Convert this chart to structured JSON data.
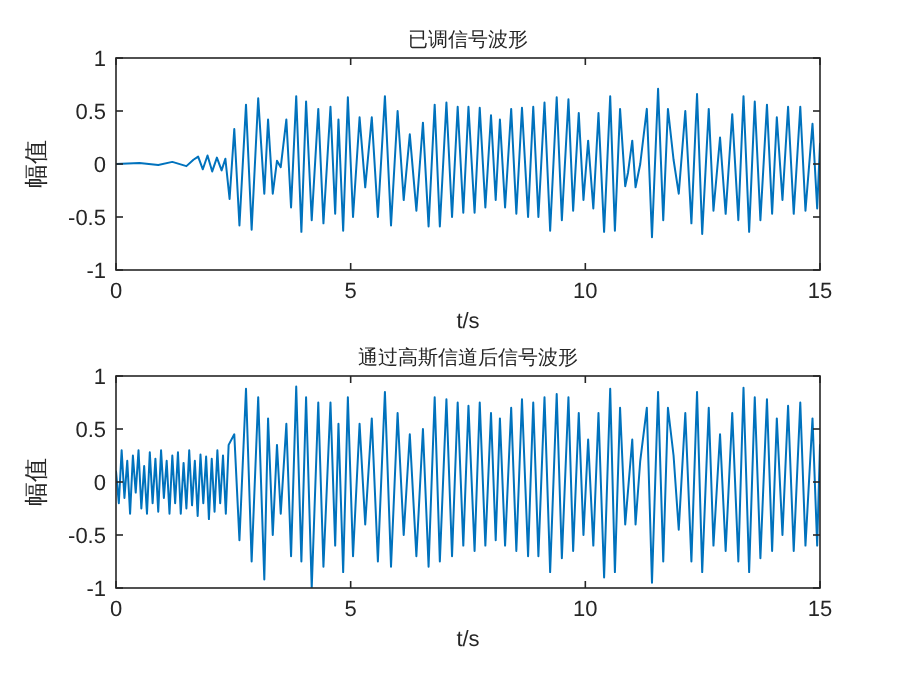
{
  "chart_data": [
    {
      "type": "line",
      "title": "已调信号波形",
      "xlabel": "t/s",
      "ylabel": "幅值",
      "color": "#0072bd",
      "xlim": [
        0,
        15
      ],
      "ylim": [
        -1,
        1
      ],
      "xticks": [
        0,
        5,
        10,
        15
      ],
      "yticks": [
        -1,
        -0.5,
        0,
        0.5,
        1
      ],
      "x": [
        0,
        0.5,
        0.9,
        1.2,
        1.5,
        1.65,
        1.75,
        1.85,
        1.95,
        2.05,
        2.15,
        2.25,
        2.33,
        2.42,
        2.52,
        2.63,
        2.77,
        2.89,
        3.03,
        3.16,
        3.24,
        3.34,
        3.43,
        3.51,
        3.63,
        3.73,
        3.84,
        3.95,
        4.05,
        4.17,
        4.31,
        4.42,
        4.57,
        4.67,
        4.74,
        4.84,
        4.94,
        5.05,
        5.19,
        5.31,
        5.45,
        5.58,
        5.73,
        5.86,
        6.0,
        6.13,
        6.26,
        6.4,
        6.54,
        6.66,
        6.79,
        6.9,
        7.04,
        7.16,
        7.28,
        7.4,
        7.51,
        7.64,
        7.75,
        7.87,
        7.99,
        8.09,
        8.18,
        8.29,
        8.42,
        8.53,
        8.65,
        8.78,
        8.89,
        9.0,
        9.13,
        9.25,
        9.39,
        9.5,
        9.64,
        9.74,
        9.86,
        9.96,
        10.06,
        10.17,
        10.28,
        10.4,
        10.53,
        10.63,
        10.74,
        10.85,
        10.91,
        11.0,
        11.07,
        11.17,
        11.31,
        11.42,
        11.55,
        11.66,
        11.76,
        11.88,
        11.99,
        12.13,
        12.26,
        12.38,
        12.49,
        12.63,
        12.73,
        12.87,
        12.99,
        13.13,
        13.26,
        13.37,
        13.49,
        13.61,
        13.73,
        13.87,
        13.98,
        14.08,
        14.2,
        14.32,
        14.44,
        14.58,
        14.69,
        14.84,
        14.94,
        15.0
      ],
      "values": [
        0,
        0.01,
        -0.01,
        0.02,
        -0.02,
        0.04,
        0.07,
        -0.05,
        0.08,
        -0.07,
        0.06,
        -0.06,
        0.05,
        -0.33,
        0.33,
        -0.58,
        0.56,
        -0.62,
        0.62,
        -0.28,
        0.42,
        -0.28,
        0.03,
        -0.03,
        0.42,
        -0.41,
        0.64,
        -0.64,
        0.59,
        -0.53,
        0.52,
        -0.56,
        0.54,
        -0.47,
        0.42,
        -0.63,
        0.63,
        -0.5,
        0.44,
        -0.22,
        0.44,
        -0.5,
        0.64,
        -0.58,
        0.5,
        -0.34,
        0.28,
        -0.44,
        0.39,
        -0.59,
        0.56,
        -0.59,
        0.58,
        -0.5,
        0.54,
        -0.46,
        0.54,
        -0.46,
        0.53,
        -0.41,
        0.46,
        -0.34,
        0.42,
        -0.41,
        0.52,
        -0.47,
        0.53,
        -0.5,
        0.54,
        -0.5,
        0.58,
        -0.63,
        0.63,
        -0.53,
        0.61,
        -0.44,
        0.48,
        -0.34,
        0.22,
        -0.42,
        0.48,
        -0.64,
        0.64,
        -0.63,
        0.52,
        -0.21,
        -0.08,
        0.22,
        -0.22,
        0,
        0.52,
        -0.69,
        0.71,
        -0.53,
        0.52,
        0.04,
        -0.28,
        0.5,
        -0.56,
        0.66,
        -0.66,
        0.52,
        -0.44,
        0.25,
        -0.47,
        0.47,
        -0.53,
        0.64,
        -0.64,
        0.59,
        -0.53,
        0.56,
        -0.47,
        0.44,
        -0.34,
        0.54,
        -0.47,
        0.54,
        -0.44,
        0.38,
        -0.42,
        0.19
      ]
    },
    {
      "type": "line",
      "title": "通过高斯信道后信号波形",
      "xlabel": "t/s",
      "ylabel": "幅值",
      "color": "#0072bd",
      "xlim": [
        0,
        15
      ],
      "ylim": [
        -1,
        1
      ],
      "xticks": [
        0,
        5,
        10,
        15
      ],
      "yticks": [
        -1,
        -0.5,
        0,
        0.5,
        1
      ],
      "x": [
        0,
        0.06,
        0.12,
        0.18,
        0.24,
        0.3,
        0.36,
        0.42,
        0.48,
        0.54,
        0.6,
        0.66,
        0.72,
        0.78,
        0.84,
        0.9,
        0.96,
        1.02,
        1.08,
        1.14,
        1.2,
        1.26,
        1.32,
        1.38,
        1.44,
        1.5,
        1.56,
        1.62,
        1.68,
        1.74,
        1.8,
        1.86,
        1.92,
        1.98,
        2.04,
        2.1,
        2.16,
        2.22,
        2.28,
        2.34,
        2.4,
        2.52,
        2.63,
        2.77,
        2.89,
        3.03,
        3.16,
        3.24,
        3.34,
        3.43,
        3.51,
        3.63,
        3.73,
        3.84,
        3.95,
        4.05,
        4.17,
        4.31,
        4.42,
        4.57,
        4.67,
        4.74,
        4.84,
        4.94,
        5.05,
        5.19,
        5.31,
        5.45,
        5.58,
        5.73,
        5.86,
        6.0,
        6.13,
        6.26,
        6.4,
        6.54,
        6.66,
        6.79,
        6.9,
        7.04,
        7.16,
        7.28,
        7.4,
        7.51,
        7.64,
        7.75,
        7.87,
        7.99,
        8.09,
        8.18,
        8.29,
        8.42,
        8.53,
        8.65,
        8.78,
        8.89,
        9.0,
        9.13,
        9.25,
        9.39,
        9.5,
        9.64,
        9.74,
        9.86,
        9.96,
        10.06,
        10.17,
        10.28,
        10.4,
        10.53,
        10.63,
        10.74,
        10.85,
        11.0,
        11.07,
        11.17,
        11.31,
        11.42,
        11.55,
        11.66,
        11.76,
        11.88,
        11.99,
        12.13,
        12.26,
        12.38,
        12.49,
        12.63,
        12.73,
        12.87,
        12.99,
        13.13,
        13.26,
        13.37,
        13.49,
        13.61,
        13.73,
        13.87,
        13.98,
        14.08,
        14.2,
        14.32,
        14.44,
        14.58,
        14.69,
        14.84,
        14.94,
        15.0
      ],
      "values": [
        0.1,
        -0.2,
        0.3,
        -0.15,
        0.2,
        -0.3,
        0.25,
        -0.1,
        0.3,
        -0.25,
        0.15,
        -0.3,
        0.28,
        -0.2,
        0.22,
        -0.28,
        0.3,
        -0.15,
        0.2,
        -0.3,
        0.25,
        -0.2,
        0.28,
        -0.3,
        0.18,
        -0.25,
        0.3,
        -0.22,
        0.2,
        -0.32,
        0.26,
        -0.2,
        0.24,
        -0.35,
        0.22,
        -0.28,
        0.3,
        -0.2,
        0.25,
        -0.3,
        0.35,
        0.45,
        -0.55,
        0.88,
        -0.75,
        0.8,
        -0.92,
        0.6,
        -0.5,
        0.35,
        -0.3,
        0.55,
        -0.7,
        0.9,
        -0.75,
        0.8,
        -1,
        0.75,
        -0.8,
        0.75,
        -0.6,
        0.55,
        -0.85,
        0.8,
        -0.7,
        0.55,
        -0.4,
        0.6,
        -0.75,
        0.85,
        -0.8,
        0.65,
        -0.5,
        0.45,
        -0.7,
        0.5,
        -0.8,
        0.8,
        -0.75,
        0.78,
        -0.7,
        0.75,
        -0.6,
        0.72,
        -0.65,
        0.75,
        -0.6,
        0.65,
        -0.55,
        0.6,
        -0.6,
        0.7,
        -0.65,
        0.78,
        -0.7,
        0.75,
        -0.7,
        0.8,
        -0.85,
        0.83,
        -0.72,
        0.8,
        -0.65,
        0.65,
        -0.5,
        0.4,
        -0.6,
        0.65,
        -0.9,
        0.88,
        -0.85,
        0.7,
        -0.4,
        0.4,
        -0.4,
        0.2,
        0.7,
        -0.95,
        0.85,
        -0.75,
        0.7,
        0.25,
        -0.45,
        0.65,
        -0.75,
        0.85,
        -0.85,
        0.7,
        -0.6,
        0.45,
        -0.65,
        0.65,
        -0.75,
        0.89,
        -0.85,
        0.8,
        -0.72,
        0.78,
        -0.65,
        0.6,
        -0.5,
        0.72,
        -0.65,
        0.75,
        -0.6,
        0.6,
        -0.6,
        0.35
      ]
    }
  ]
}
